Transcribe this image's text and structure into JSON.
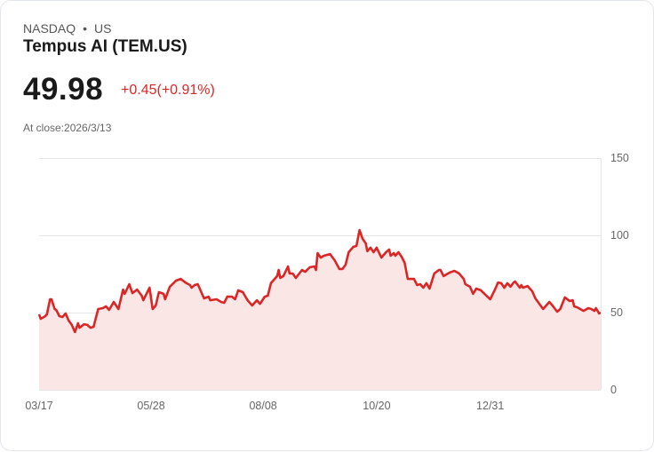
{
  "header": {
    "exchange": "NASDAQ",
    "separator": "•",
    "region": "US",
    "title": "Tempus AI (TEM.US)",
    "price": "49.98",
    "change": "+0.45(+0.91%)",
    "close_label": "At close:2026/3/13"
  },
  "colors": {
    "line": "#dc2626",
    "fill": "#fbe6e6",
    "grid": "#e5e5e5"
  },
  "chart_data": {
    "type": "area",
    "title": "Tempus AI (TEM.US)",
    "xlabel": "",
    "ylabel": "",
    "x_unit": "days since 03/17",
    "xlim": [
      0,
      361
    ],
    "ylim": [
      0,
      150
    ],
    "y_ticks": [
      0,
      50,
      100,
      150
    ],
    "y_tick_labels": [
      "0",
      "50",
      "100",
      "150"
    ],
    "x_ticks": [
      0,
      72,
      144,
      217,
      290
    ],
    "x_tick_labels": [
      "03/17",
      "05/28",
      "08/08",
      "10/20",
      "12/31"
    ],
    "grid": true,
    "legend": "none",
    "points": [
      [
        0,
        48.9
      ],
      [
        1,
        46.0
      ],
      [
        4,
        47.7
      ],
      [
        5,
        48.9
      ],
      [
        7,
        58.6
      ],
      [
        8,
        58.6
      ],
      [
        10,
        52.3
      ],
      [
        11,
        51.7
      ],
      [
        13,
        47.7
      ],
      [
        15,
        47.1
      ],
      [
        17,
        49.4
      ],
      [
        19,
        44.8
      ],
      [
        21,
        42.0
      ],
      [
        23,
        37.4
      ],
      [
        25,
        43.1
      ],
      [
        26,
        40.2
      ],
      [
        29,
        42.5
      ],
      [
        31,
        42.0
      ],
      [
        33,
        40.2
      ],
      [
        35,
        40.8
      ],
      [
        38,
        52.3
      ],
      [
        41,
        52.9
      ],
      [
        43,
        54.0
      ],
      [
        45,
        51.7
      ],
      [
        48,
        56.9
      ],
      [
        51,
        52.3
      ],
      [
        54,
        64.9
      ],
      [
        55,
        62.1
      ],
      [
        58,
        68.4
      ],
      [
        60,
        62.6
      ],
      [
        63,
        64.9
      ],
      [
        66,
        60.9
      ],
      [
        67,
        58.0
      ],
      [
        71,
        66.1
      ],
      [
        73,
        52.3
      ],
      [
        75,
        54.6
      ],
      [
        77,
        63.2
      ],
      [
        80,
        62.1
      ],
      [
        81,
        58.6
      ],
      [
        84,
        66.7
      ],
      [
        88,
        70.7
      ],
      [
        91,
        71.8
      ],
      [
        94,
        69.5
      ],
      [
        97,
        67.8
      ],
      [
        98,
        66.1
      ],
      [
        100,
        67.8
      ],
      [
        102,
        68.4
      ],
      [
        104,
        63.8
      ],
      [
        106,
        59.2
      ],
      [
        109,
        60.3
      ],
      [
        110,
        58.0
      ],
      [
        114,
        58.6
      ],
      [
        117,
        56.9
      ],
      [
        119,
        56.3
      ],
      [
        121,
        60.3
      ],
      [
        124,
        60.3
      ],
      [
        126,
        58.6
      ],
      [
        128,
        64.4
      ],
      [
        131,
        63.2
      ],
      [
        134,
        58.0
      ],
      [
        137,
        54.6
      ],
      [
        140,
        58.0
      ],
      [
        142,
        55.7
      ],
      [
        145,
        60.3
      ],
      [
        147,
        60.9
      ],
      [
        149,
        69.0
      ],
      [
        153,
        73.6
      ],
      [
        154,
        77.6
      ],
      [
        155,
        72.4
      ],
      [
        157,
        73.6
      ],
      [
        160,
        79.9
      ],
      [
        161,
        75.3
      ],
      [
        163,
        75.3
      ],
      [
        165,
        72.4
      ],
      [
        169,
        77.6
      ],
      [
        171,
        76.4
      ],
      [
        174,
        79.3
      ],
      [
        177,
        79.9
      ],
      [
        178,
        77.6
      ],
      [
        179,
        88.5
      ],
      [
        181,
        85.6
      ],
      [
        183,
        86.8
      ],
      [
        187,
        87.9
      ],
      [
        190,
        83.9
      ],
      [
        193,
        78.2
      ],
      [
        195,
        78.2
      ],
      [
        197,
        81.0
      ],
      [
        199,
        89.1
      ],
      [
        202,
        92.5
      ],
      [
        204,
        93.1
      ],
      [
        206,
        103.4
      ],
      [
        208,
        97.7
      ],
      [
        210,
        94.8
      ],
      [
        211,
        89.7
      ],
      [
        213,
        92.0
      ],
      [
        215,
        89.1
      ],
      [
        217,
        92.0
      ],
      [
        220,
        85.6
      ],
      [
        223,
        89.1
      ],
      [
        225,
        90.8
      ],
      [
        226,
        86.8
      ],
      [
        228,
        88.5
      ],
      [
        229,
        86.8
      ],
      [
        231,
        89.1
      ],
      [
        233,
        86.2
      ],
      [
        235,
        82.2
      ],
      [
        237,
        71.8
      ],
      [
        241,
        71.8
      ],
      [
        243,
        67.8
      ],
      [
        245,
        68.4
      ],
      [
        247,
        66.1
      ],
      [
        249,
        69.0
      ],
      [
        251,
        65.5
      ],
      [
        254,
        75.3
      ],
      [
        257,
        77.6
      ],
      [
        258,
        77.6
      ],
      [
        260,
        73.6
      ],
      [
        264,
        75.9
      ],
      [
        267,
        77.0
      ],
      [
        270,
        75.3
      ],
      [
        273,
        71.8
      ],
      [
        274,
        68.4
      ],
      [
        277,
        66.7
      ],
      [
        279,
        62.1
      ],
      [
        281,
        65.5
      ],
      [
        284,
        64.4
      ],
      [
        287,
        61.5
      ],
      [
        290,
        58.6
      ],
      [
        293,
        64.9
      ],
      [
        295,
        69.5
      ],
      [
        297,
        69.0
      ],
      [
        299,
        66.1
      ],
      [
        301,
        69.0
      ],
      [
        303,
        66.7
      ],
      [
        305,
        69.5
      ],
      [
        306,
        70.1
      ],
      [
        309,
        66.1
      ],
      [
        310,
        67.8
      ],
      [
        311,
        66.1
      ],
      [
        314,
        67.2
      ],
      [
        317,
        63.8
      ],
      [
        319,
        59.2
      ],
      [
        324,
        52.3
      ],
      [
        328,
        56.9
      ],
      [
        330,
        54.6
      ],
      [
        333,
        50.6
      ],
      [
        335,
        52.3
      ],
      [
        338,
        59.8
      ],
      [
        341,
        57.5
      ],
      [
        343,
        58.0
      ],
      [
        344,
        54.0
      ],
      [
        346,
        53.4
      ],
      [
        350,
        51.1
      ],
      [
        353,
        52.9
      ],
      [
        355,
        52.3
      ],
      [
        357,
        51.1
      ],
      [
        358,
        52.9
      ],
      [
        360,
        49.4
      ],
      [
        361,
        49.98
      ]
    ]
  }
}
